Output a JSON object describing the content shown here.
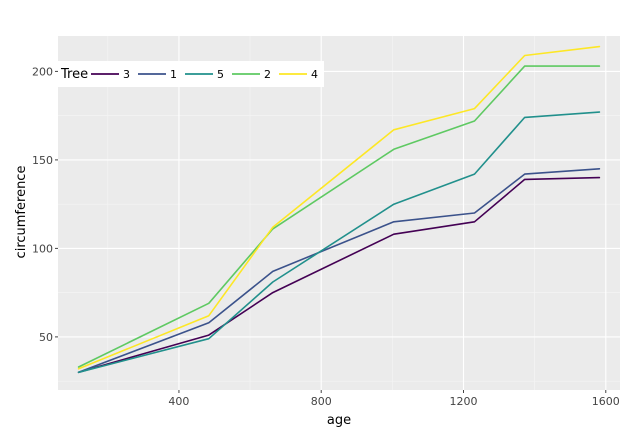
{
  "chart_data": {
    "type": "line",
    "title": "",
    "xlabel": "age",
    "ylabel": "circumference",
    "xlim": [
      60,
      1640
    ],
    "ylim": [
      20,
      220
    ],
    "x_ticks": [
      400,
      800,
      1200,
      1600
    ],
    "y_ticks": [
      50,
      100,
      150,
      200
    ],
    "x_tick_labels": [
      "400",
      "800",
      "1200",
      "1600"
    ],
    "y_tick_labels": [
      "50",
      "100",
      "150",
      "200"
    ],
    "legend_title": "Tree",
    "legend_position": "top-left",
    "grid": true,
    "x": [
      118,
      484,
      664,
      1004,
      1231,
      1372,
      1582
    ],
    "series": [
      {
        "name": "3",
        "color": "#440154",
        "values": [
          30,
          51,
          75,
          108,
          115,
          139,
          140
        ]
      },
      {
        "name": "1",
        "color": "#3b528b",
        "values": [
          30,
          58,
          87,
          115,
          120,
          142,
          145
        ]
      },
      {
        "name": "5",
        "color": "#21908c",
        "values": [
          30,
          49,
          81,
          125,
          142,
          174,
          177
        ]
      },
      {
        "name": "2",
        "color": "#5ec962",
        "values": [
          33,
          69,
          111,
          156,
          172,
          203,
          203
        ]
      },
      {
        "name": "4",
        "color": "#fde725",
        "values": [
          32,
          62,
          112,
          167,
          179,
          209,
          214
        ]
      }
    ]
  }
}
